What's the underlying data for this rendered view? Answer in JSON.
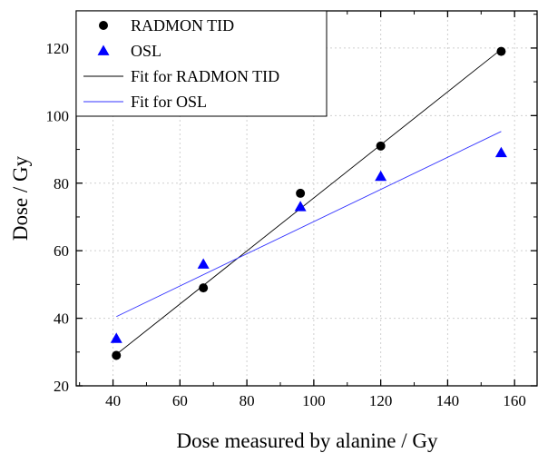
{
  "chart_data": {
    "type": "scatter",
    "xlabel": "Dose measured by alanine / Gy",
    "ylabel": "Dose / Gy",
    "xlim": [
      29,
      167
    ],
    "ylim": [
      20,
      131
    ],
    "xticks": [
      40,
      60,
      80,
      100,
      120,
      140,
      160
    ],
    "yticks": [
      20,
      40,
      60,
      80,
      100,
      120
    ],
    "grid": true,
    "legend_position": "top-left",
    "series": [
      {
        "name": "RADMON TID",
        "kind": "points",
        "marker": "circle",
        "color": "#000000",
        "points": [
          {
            "x": 41,
            "y": 29
          },
          {
            "x": 67,
            "y": 49
          },
          {
            "x": 96,
            "y": 77
          },
          {
            "x": 120,
            "y": 91
          },
          {
            "x": 156,
            "y": 119
          }
        ]
      },
      {
        "name": "OSL",
        "kind": "points",
        "marker": "triangle",
        "color": "#0000ff",
        "points": [
          {
            "x": 41,
            "y": 34
          },
          {
            "x": 67,
            "y": 56
          },
          {
            "x": 96,
            "y": 73
          },
          {
            "x": 120,
            "y": 82
          },
          {
            "x": 156,
            "y": 89
          }
        ]
      },
      {
        "name": "Fit for RADMON TID",
        "kind": "line",
        "color": "#000000",
        "points": [
          {
            "x": 41,
            "y": 29.3
          },
          {
            "x": 156,
            "y": 119.6
          }
        ]
      },
      {
        "name": "Fit for OSL",
        "kind": "line",
        "color": "#3333ff",
        "points": [
          {
            "x": 41,
            "y": 40.5
          },
          {
            "x": 156,
            "y": 95.3
          }
        ]
      }
    ]
  }
}
